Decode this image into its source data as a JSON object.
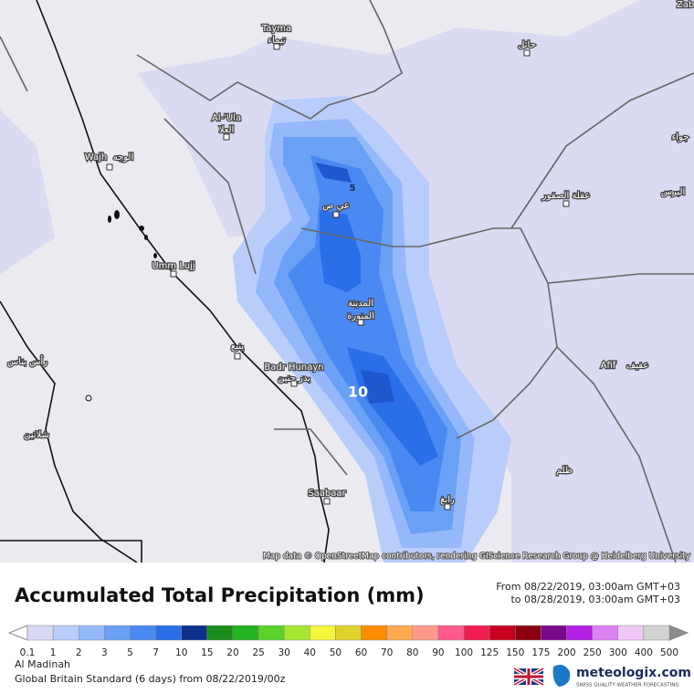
{
  "map": {
    "labels": [
      "Tayma",
      "تيماء",
      "حائل",
      "Zabi",
      "Al-'Ula",
      "العلا",
      "Wajh",
      "الوجه",
      "عي ص",
      "جواء",
      "عقلة الصقور",
      "Umm Lujj",
      "المدينة",
      "المنورة",
      "ينبع",
      "Badr Hunayn",
      "بدر حنين",
      "Afif",
      "عفيف",
      "رأس بناس",
      "شلاتين",
      "ظلم",
      "Saabaar",
      "رابغ",
      "البرس"
    ],
    "contour_labels": [
      5,
      10
    ],
    "attribution": "Map data © OpenStreetMap contributors, rendering GIScience Research Group @ Heidelberg University"
  },
  "legend": {
    "title": "Accumulated Total Precipitation (mm)",
    "from": "From 08/22/2019, 03:00am GMT+03",
    "to": "to 08/28/2019, 03:00am GMT+03",
    "scale": [
      0.1,
      1,
      2,
      3,
      5,
      7,
      10,
      15,
      20,
      25,
      30,
      40,
      50,
      60,
      70,
      80,
      90,
      100,
      125,
      150,
      175,
      200,
      250,
      300,
      400,
      500
    ],
    "colors": [
      "#d9d9f5",
      "#b8cdfa",
      "#94b8fa",
      "#6aa0f5",
      "#4a88f2",
      "#2a6ee8",
      "#0c2f8a",
      "#1a8c1a",
      "#22b422",
      "#5ad22a",
      "#a6e632",
      "#f5f53c",
      "#e0d22a",
      "#ff8c00",
      "#ffaa50",
      "#ff9a8a",
      "#ff5a8c",
      "#f01e50",
      "#c8001e",
      "#8c0014",
      "#7a0a8c",
      "#b41ee6",
      "#dc82f5",
      "#f0c8f5",
      "#d2d2d2"
    ],
    "below_color": "#ffffff",
    "above_color": "#8c8c8c"
  },
  "footer": {
    "location": "Al Madinah",
    "model": "Global Britain Standard (6 days) from 08/22/2019/00z",
    "brand": "meteologix.com",
    "tagline": "SWISS QUALITY WEATHER FORECASTING"
  }
}
